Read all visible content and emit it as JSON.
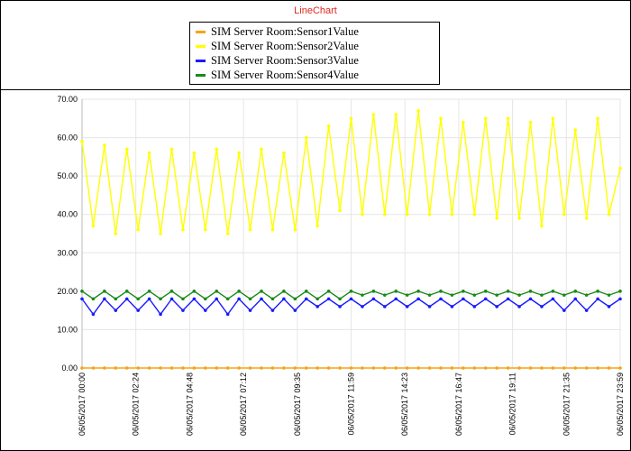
{
  "chart_data": {
    "type": "line",
    "title": "LineChart",
    "xlabel": "",
    "ylabel": "",
    "ylim": [
      0,
      70
    ],
    "y_ticks": [
      "0.00",
      "10.00",
      "20.00",
      "30.00",
      "40.00",
      "50.00",
      "60.00",
      "70.00"
    ],
    "x_ticks": [
      "06/05/2017 00:00",
      "06/05/2017 02:24",
      "06/05/2017 04:48",
      "06/05/2017 07:12",
      "06/05/2017 09:35",
      "06/05/2017 11:59",
      "06/05/2017 14:23",
      "06/05/2017 16:47",
      "06/05/2017 19:11",
      "06/05/2017 21:35",
      "06/05/2017 23:59"
    ],
    "grid": true,
    "legend_position": "top-center",
    "x": [
      "06/05/2017 00:00",
      "06/05/2017 00:30",
      "06/05/2017 01:00",
      "06/05/2017 01:30",
      "06/05/2017 02:00",
      "06/05/2017 02:30",
      "06/05/2017 03:00",
      "06/05/2017 03:30",
      "06/05/2017 04:00",
      "06/05/2017 04:30",
      "06/05/2017 05:00",
      "06/05/2017 05:30",
      "06/05/2017 06:00",
      "06/05/2017 06:30",
      "06/05/2017 07:00",
      "06/05/2017 07:30",
      "06/05/2017 08:00",
      "06/05/2017 08:30",
      "06/05/2017 09:00",
      "06/05/2017 09:30",
      "06/05/2017 10:00",
      "06/05/2017 10:30",
      "06/05/2017 11:00",
      "06/05/2017 11:30",
      "06/05/2017 12:00",
      "06/05/2017 12:30",
      "06/05/2017 13:00",
      "06/05/2017 13:30",
      "06/05/2017 14:00",
      "06/05/2017 14:30",
      "06/05/2017 15:00",
      "06/05/2017 15:30",
      "06/05/2017 16:00",
      "06/05/2017 16:30",
      "06/05/2017 17:00",
      "06/05/2017 17:30",
      "06/05/2017 18:00",
      "06/05/2017 18:30",
      "06/05/2017 19:00",
      "06/05/2017 19:30",
      "06/05/2017 20:00",
      "06/05/2017 20:30",
      "06/05/2017 21:00",
      "06/05/2017 21:30",
      "06/05/2017 22:00",
      "06/05/2017 22:30",
      "06/05/2017 23:00",
      "06/05/2017 23:30",
      "06/05/2017 23:59"
    ],
    "series": [
      {
        "name": "SIM Server Room:Sensor1Value",
        "color": "#f5a31a",
        "values": [
          0,
          0,
          0,
          0,
          0,
          0,
          0,
          0,
          0,
          0,
          0,
          0,
          0,
          0,
          0,
          0,
          0,
          0,
          0,
          0,
          0,
          0,
          0,
          0,
          0,
          0,
          0,
          0,
          0,
          0,
          0,
          0,
          0,
          0,
          0,
          0,
          0,
          0,
          0,
          0,
          0,
          0,
          0,
          0,
          0,
          0,
          0,
          0,
          0
        ]
      },
      {
        "name": "SIM Server Room:Sensor2Value",
        "color": "#ffff00",
        "values": [
          59,
          37,
          58,
          35,
          57,
          36,
          56,
          35,
          57,
          36,
          56,
          36,
          57,
          35,
          56,
          36,
          57,
          36,
          56,
          36,
          60,
          37,
          63,
          41,
          65,
          40,
          66,
          40,
          66,
          40,
          67,
          40,
          65,
          40,
          64,
          40,
          65,
          39,
          65,
          39,
          64,
          37,
          65,
          40,
          62,
          39,
          65,
          40,
          52
        ]
      },
      {
        "name": "SIM Server Room:Sensor3Value",
        "color": "#1a1aff",
        "values": [
          18,
          14,
          18,
          15,
          18,
          15,
          18,
          14,
          18,
          15,
          18,
          15,
          18,
          14,
          18,
          15,
          18,
          15,
          18,
          15,
          18,
          16,
          18,
          16,
          18,
          16,
          18,
          16,
          18,
          16,
          18,
          16,
          18,
          16,
          18,
          16,
          18,
          16,
          18,
          16,
          18,
          16,
          18,
          15,
          18,
          15,
          18,
          16,
          18
        ]
      },
      {
        "name": "SIM Server Room:Sensor4Value",
        "color": "#1a8a1a",
        "values": [
          20,
          18,
          20,
          18,
          20,
          18,
          20,
          18,
          20,
          18,
          20,
          18,
          20,
          18,
          20,
          18,
          20,
          18,
          20,
          18,
          20,
          18,
          20,
          18,
          20,
          19,
          20,
          19,
          20,
          19,
          20,
          19,
          20,
          19,
          20,
          19,
          20,
          19,
          20,
          19,
          20,
          19,
          20,
          19,
          20,
          19,
          20,
          19,
          20
        ]
      }
    ]
  }
}
